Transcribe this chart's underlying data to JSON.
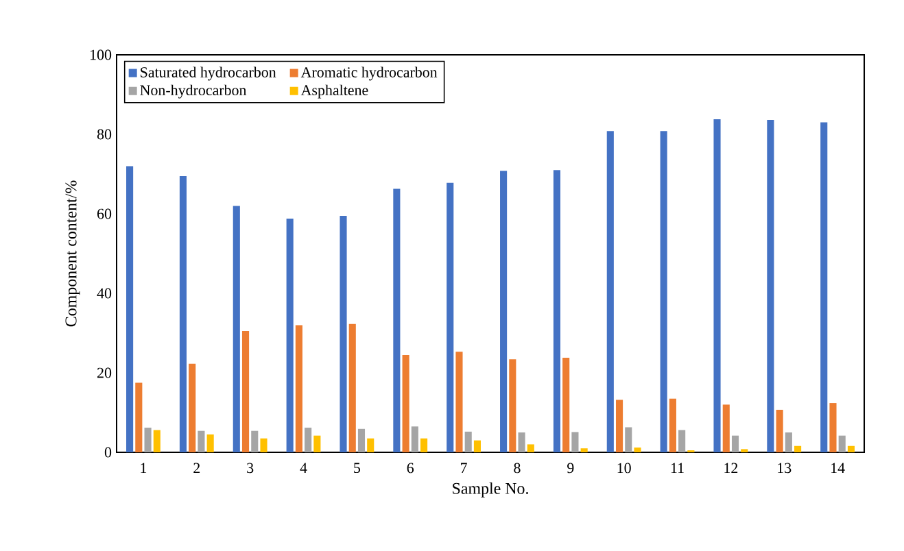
{
  "chart_data": {
    "type": "bar",
    "xlabel": "Sample No.",
    "ylabel": "Component content/%",
    "categories": [
      "1",
      "2",
      "3",
      "4",
      "5",
      "6",
      "7",
      "8",
      "9",
      "10",
      "11",
      "12",
      "13",
      "14"
    ],
    "series": [
      {
        "name": "Saturated hydrocarbon",
        "color": "#4472c4",
        "values": [
          72,
          69.5,
          62,
          58.8,
          59.5,
          66.3,
          67.8,
          70.8,
          71,
          80.8,
          80.8,
          83.8,
          83.6,
          83
        ]
      },
      {
        "name": "Aromatic hydrocarbon",
        "color": "#ed7d31",
        "values": [
          17.5,
          22.3,
          30.5,
          32,
          32.3,
          24.5,
          25.3,
          23.4,
          23.8,
          13.2,
          13.5,
          12,
          10.7,
          12.4
        ]
      },
      {
        "name": "Non-hydrocarbon",
        "color": "#a5a5a5",
        "values": [
          6.2,
          5.4,
          5.4,
          6.2,
          5.9,
          6.5,
          5.2,
          5,
          5.1,
          6.3,
          5.6,
          4.2,
          5,
          4.2
        ]
      },
      {
        "name": "Asphaltene",
        "color": "#ffc000",
        "values": [
          5.6,
          4.5,
          3.5,
          4.2,
          3.5,
          3.5,
          3,
          2,
          1,
          1.2,
          0.5,
          0.8,
          1.6,
          1.6
        ]
      }
    ],
    "ylim": [
      0,
      100
    ],
    "yticks": [
      0,
      20,
      40,
      60,
      80,
      100
    ],
    "grid": false,
    "legend": "top left"
  }
}
